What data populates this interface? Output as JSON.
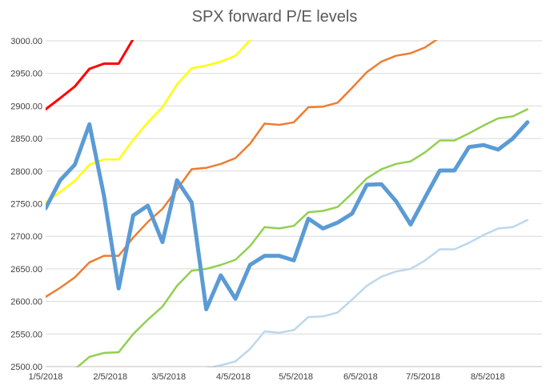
{
  "chart_data": {
    "type": "line",
    "title": "SPX forward P/E levels",
    "xlabel": "",
    "ylabel": "",
    "ylim": [
      2500,
      3000
    ],
    "y_ticks": [
      2500,
      2550,
      2600,
      2650,
      2700,
      2750,
      2800,
      2850,
      2900,
      2950,
      3000
    ],
    "y_tick_labels": [
      "2500.00",
      "2550.00",
      "2600.00",
      "2650.00",
      "2700.00",
      "2750.00",
      "2800.00",
      "2850.00",
      "2900.00",
      "2950.00",
      "3000.00"
    ],
    "x_ticks": [
      {
        "date": "2018-01-05",
        "label": "1/5/2018"
      },
      {
        "date": "2018-02-05",
        "label": "2/5/2018"
      },
      {
        "date": "2018-03-05",
        "label": "3/5/2018"
      },
      {
        "date": "2018-04-05",
        "label": "4/5/2018"
      },
      {
        "date": "2018-05-05",
        "label": "5/5/2018"
      },
      {
        "date": "2018-06-05",
        "label": "6/5/2018"
      },
      {
        "date": "2018-07-05",
        "label": "7/5/2018"
      },
      {
        "date": "2018-08-05",
        "label": "8/5/2018"
      }
    ],
    "xlim": [
      "2018-01-05",
      "2018-08-31"
    ],
    "grid": "horizontal",
    "legend": "none",
    "series": [
      {
        "color": "#ff0000",
        "width": 3,
        "points": [
          [
            "2018-01-05",
            2895
          ],
          [
            "2018-01-12",
            2912
          ],
          [
            "2018-01-19",
            2930
          ],
          [
            "2018-01-26",
            2957
          ],
          [
            "2018-02-02",
            2965
          ],
          [
            "2018-02-09",
            2965
          ],
          [
            "2018-02-16",
            3003
          ],
          [
            "2018-02-23",
            3040
          ]
        ]
      },
      {
        "color": "#ffff00",
        "width": 2.5,
        "points": [
          [
            "2018-01-05",
            2752
          ],
          [
            "2018-01-12",
            2768
          ],
          [
            "2018-01-19",
            2785
          ],
          [
            "2018-01-26",
            2810
          ],
          [
            "2018-02-02",
            2818
          ],
          [
            "2018-02-09",
            2818
          ],
          [
            "2018-02-16",
            2848
          ],
          [
            "2018-02-23",
            2875
          ],
          [
            "2018-03-02",
            2898
          ],
          [
            "2018-03-09",
            2933
          ],
          [
            "2018-03-16",
            2958
          ],
          [
            "2018-03-23",
            2962
          ],
          [
            "2018-03-30",
            2968
          ],
          [
            "2018-04-06",
            2977
          ],
          [
            "2018-04-13",
            3001
          ],
          [
            "2018-04-20",
            3030
          ]
        ]
      },
      {
        "color": "#ed7d31",
        "width": 2.5,
        "points": [
          [
            "2018-01-05",
            2607
          ],
          [
            "2018-01-12",
            2621
          ],
          [
            "2018-01-19",
            2637
          ],
          [
            "2018-01-26",
            2660
          ],
          [
            "2018-02-02",
            2670
          ],
          [
            "2018-02-09",
            2670
          ],
          [
            "2018-02-16",
            2698
          ],
          [
            "2018-02-23",
            2722
          ],
          [
            "2018-03-02",
            2742
          ],
          [
            "2018-03-09",
            2772
          ],
          [
            "2018-03-16",
            2803
          ],
          [
            "2018-03-23",
            2805
          ],
          [
            "2018-03-30",
            2811
          ],
          [
            "2018-04-06",
            2820
          ],
          [
            "2018-04-13",
            2842
          ],
          [
            "2018-04-20",
            2873
          ],
          [
            "2018-04-27",
            2871
          ],
          [
            "2018-05-04",
            2875
          ],
          [
            "2018-05-11",
            2898
          ],
          [
            "2018-05-18",
            2899
          ],
          [
            "2018-05-25",
            2905
          ],
          [
            "2018-06-01",
            2928
          ],
          [
            "2018-06-08",
            2952
          ],
          [
            "2018-06-15",
            2968
          ],
          [
            "2018-06-22",
            2977
          ],
          [
            "2018-06-29",
            2981
          ],
          [
            "2018-07-06",
            2990
          ],
          [
            "2018-07-13",
            3005
          ],
          [
            "2018-07-20",
            3020
          ]
        ]
      },
      {
        "color": "#92d050",
        "width": 2.5,
        "points": [
          [
            "2018-01-05",
            2468
          ],
          [
            "2018-01-12",
            2482
          ],
          [
            "2018-01-19",
            2496
          ],
          [
            "2018-01-26",
            2515
          ],
          [
            "2018-02-02",
            2521
          ],
          [
            "2018-02-09",
            2522
          ],
          [
            "2018-02-16",
            2550
          ],
          [
            "2018-02-23",
            2572
          ],
          [
            "2018-03-02",
            2592
          ],
          [
            "2018-03-09",
            2624
          ],
          [
            "2018-03-16",
            2647
          ],
          [
            "2018-03-23",
            2650
          ],
          [
            "2018-03-30",
            2656
          ],
          [
            "2018-04-06",
            2664
          ],
          [
            "2018-04-13",
            2685
          ],
          [
            "2018-04-20",
            2714
          ],
          [
            "2018-04-27",
            2712
          ],
          [
            "2018-05-04",
            2716
          ],
          [
            "2018-05-11",
            2737
          ],
          [
            "2018-05-18",
            2739
          ],
          [
            "2018-05-25",
            2745
          ],
          [
            "2018-06-01",
            2766
          ],
          [
            "2018-06-08",
            2789
          ],
          [
            "2018-06-15",
            2803
          ],
          [
            "2018-06-22",
            2811
          ],
          [
            "2018-06-29",
            2815
          ],
          [
            "2018-07-06",
            2829
          ],
          [
            "2018-07-13",
            2847
          ],
          [
            "2018-07-20",
            2847
          ],
          [
            "2018-07-27",
            2858
          ],
          [
            "2018-08-03",
            2870
          ],
          [
            "2018-08-10",
            2881
          ],
          [
            "2018-08-17",
            2884
          ],
          [
            "2018-08-24",
            2895
          ]
        ]
      },
      {
        "color": "#bdd7ee",
        "width": 2.5,
        "points": [
          [
            "2018-03-16",
            2492
          ],
          [
            "2018-03-23",
            2497
          ],
          [
            "2018-03-30",
            2502
          ],
          [
            "2018-04-06",
            2508
          ],
          [
            "2018-04-13",
            2527
          ],
          [
            "2018-04-20",
            2554
          ],
          [
            "2018-04-27",
            2552
          ],
          [
            "2018-05-04",
            2556
          ],
          [
            "2018-05-11",
            2576
          ],
          [
            "2018-05-18",
            2577
          ],
          [
            "2018-05-25",
            2583
          ],
          [
            "2018-06-01",
            2603
          ],
          [
            "2018-06-08",
            2624
          ],
          [
            "2018-06-15",
            2638
          ],
          [
            "2018-06-22",
            2646
          ],
          [
            "2018-06-29",
            2650
          ],
          [
            "2018-07-06",
            2663
          ],
          [
            "2018-07-13",
            2680
          ],
          [
            "2018-07-20",
            2680
          ],
          [
            "2018-07-27",
            2690
          ],
          [
            "2018-08-03",
            2702
          ],
          [
            "2018-08-10",
            2712
          ],
          [
            "2018-08-17",
            2714
          ],
          [
            "2018-08-24",
            2725
          ]
        ]
      },
      {
        "color": "#5b9bd5",
        "width": 5,
        "points": [
          [
            "2018-01-05",
            2743
          ],
          [
            "2018-01-12",
            2786
          ],
          [
            "2018-01-19",
            2810
          ],
          [
            "2018-01-26",
            2872
          ],
          [
            "2018-02-02",
            2762
          ],
          [
            "2018-02-09",
            2620
          ],
          [
            "2018-02-16",
            2732
          ],
          [
            "2018-02-23",
            2747
          ],
          [
            "2018-03-02",
            2691
          ],
          [
            "2018-03-09",
            2786
          ],
          [
            "2018-03-16",
            2752
          ],
          [
            "2018-03-23",
            2588
          ],
          [
            "2018-03-30",
            2640
          ],
          [
            "2018-04-06",
            2604
          ],
          [
            "2018-04-13",
            2656
          ],
          [
            "2018-04-20",
            2670
          ],
          [
            "2018-04-27",
            2670
          ],
          [
            "2018-05-04",
            2663
          ],
          [
            "2018-05-11",
            2727
          ],
          [
            "2018-05-18",
            2712
          ],
          [
            "2018-05-25",
            2721
          ],
          [
            "2018-06-01",
            2735
          ],
          [
            "2018-06-08",
            2779
          ],
          [
            "2018-06-15",
            2780
          ],
          [
            "2018-06-22",
            2754
          ],
          [
            "2018-06-29",
            2718
          ],
          [
            "2018-07-06",
            2760
          ],
          [
            "2018-07-13",
            2801
          ],
          [
            "2018-07-20",
            2801
          ],
          [
            "2018-07-27",
            2837
          ],
          [
            "2018-08-03",
            2840
          ],
          [
            "2018-08-10",
            2833
          ],
          [
            "2018-08-17",
            2850
          ],
          [
            "2018-08-24",
            2875
          ]
        ]
      }
    ]
  }
}
